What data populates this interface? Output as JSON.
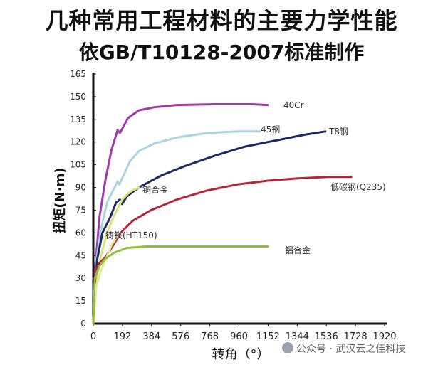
{
  "title": "几种常用工程材料的主要力学性能",
  "subtitle": "依GB/T10128-2007标准制作",
  "watermark": "公众号 · 武汉云之佳科技",
  "chart_data": {
    "type": "line",
    "xlabel": "转角（°）",
    "ylabel": "扭矩(N·m)",
    "xlim": [
      0,
      1920
    ],
    "ylim": [
      0,
      165
    ],
    "x_ticks": [
      0,
      192,
      384,
      576,
      768,
      960,
      1152,
      1344,
      1536,
      1728,
      1920
    ],
    "y_ticks": [
      0,
      15,
      30,
      45,
      60,
      75,
      90,
      105,
      120,
      135,
      150,
      165
    ],
    "grid": false,
    "series": [
      {
        "name": "40Cr",
        "color": "#a23aa8",
        "points": [
          [
            0,
            0
          ],
          [
            15,
            40
          ],
          [
            40,
            70
          ],
          [
            80,
            95
          ],
          [
            120,
            115
          ],
          [
            160,
            128
          ],
          [
            175,
            126
          ],
          [
            230,
            136
          ],
          [
            300,
            141
          ],
          [
            400,
            143
          ],
          [
            550,
            144.5
          ],
          [
            800,
            145
          ],
          [
            1050,
            145
          ],
          [
            1150,
            144.5
          ]
        ]
      },
      {
        "name": "45钢",
        "color": "#a9d4e4",
        "points": [
          [
            0,
            0
          ],
          [
            20,
            42
          ],
          [
            50,
            62
          ],
          [
            90,
            80
          ],
          [
            140,
            90
          ],
          [
            160,
            94
          ],
          [
            170,
            92
          ],
          [
            200,
            98
          ],
          [
            240,
            107
          ],
          [
            300,
            114
          ],
          [
            400,
            119
          ],
          [
            550,
            123
          ],
          [
            750,
            126
          ],
          [
            950,
            127
          ],
          [
            1100,
            127
          ]
        ]
      },
      {
        "name": "T8钢",
        "color": "#1e2a66",
        "points": [
          [
            0,
            0
          ],
          [
            25,
            42
          ],
          [
            60,
            60
          ],
          [
            110,
            70
          ],
          [
            150,
            80
          ],
          [
            175,
            82
          ],
          [
            190,
            79
          ],
          [
            220,
            84
          ],
          [
            300,
            90
          ],
          [
            450,
            98
          ],
          [
            600,
            104
          ],
          [
            800,
            111
          ],
          [
            1000,
            117
          ],
          [
            1200,
            121
          ],
          [
            1400,
            125
          ],
          [
            1530,
            127
          ]
        ]
      },
      {
        "name": "铜合金",
        "color": "#d8e47a",
        "points": [
          [
            0,
            0
          ],
          [
            20,
            30
          ],
          [
            50,
            45
          ],
          [
            90,
            60
          ],
          [
            140,
            72
          ],
          [
            190,
            82
          ],
          [
            240,
            87
          ],
          [
            300,
            90
          ]
        ]
      },
      {
        "name": "低碳钢(Q235)",
        "color": "#b5263a",
        "points": [
          [
            0,
            0
          ],
          [
            15,
            35
          ],
          [
            40,
            40
          ],
          [
            80,
            44
          ],
          [
            120,
            50
          ],
          [
            180,
            60
          ],
          [
            260,
            68
          ],
          [
            380,
            75
          ],
          [
            550,
            82
          ],
          [
            750,
            88
          ],
          [
            950,
            92
          ],
          [
            1150,
            94.5
          ],
          [
            1350,
            96
          ],
          [
            1550,
            97
          ],
          [
            1700,
            97
          ]
        ]
      },
      {
        "name": "铸铁(HT150)",
        "color": "#e0ea9e",
        "points": [
          [
            0,
            0
          ],
          [
            20,
            25
          ],
          [
            50,
            35
          ],
          [
            80,
            42
          ],
          [
            120,
            52
          ],
          [
            160,
            58
          ]
        ]
      },
      {
        "name": "铝合金",
        "color": "#8fc03a",
        "points": [
          [
            0,
            0
          ],
          [
            10,
            30
          ],
          [
            40,
            38
          ],
          [
            80,
            43
          ],
          [
            140,
            47
          ],
          [
            220,
            50
          ],
          [
            350,
            51
          ],
          [
            600,
            51
          ],
          [
            900,
            51
          ],
          [
            1150,
            51
          ]
        ]
      }
    ]
  }
}
